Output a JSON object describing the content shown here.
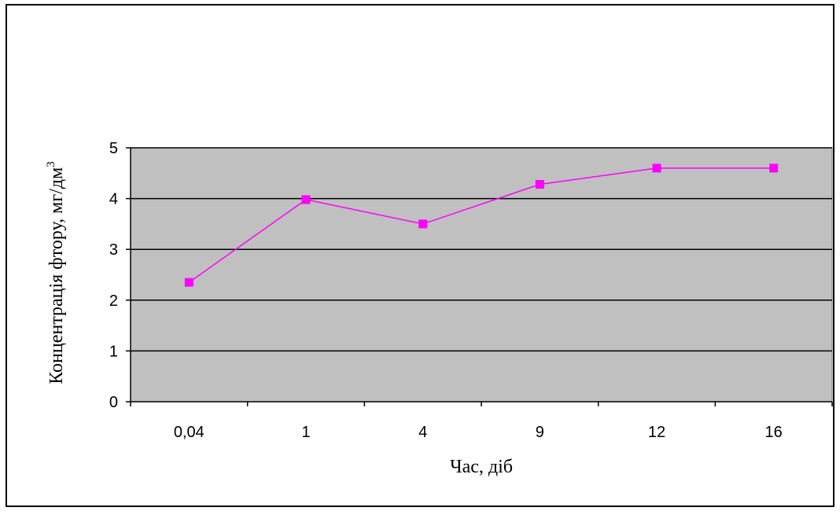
{
  "chart_data": {
    "type": "line",
    "categories": [
      "0,04",
      "1",
      "4",
      "9",
      "12",
      "16"
    ],
    "series": [
      {
        "values": [
          2.35,
          3.98,
          3.5,
          4.28,
          4.6,
          4.6
        ],
        "color": "#ff00ff",
        "marker": "square"
      }
    ],
    "xlabel": "Час, діб",
    "ylabel": "Концентрація фтору, мг/дм",
    "ylabel_superscript": "3",
    "ylim": [
      0,
      5
    ],
    "yticks": [
      "0",
      "1",
      "2",
      "3",
      "4",
      "5"
    ],
    "grid": true,
    "plot_background": "#c0c0c0",
    "grid_color": "#000000"
  }
}
